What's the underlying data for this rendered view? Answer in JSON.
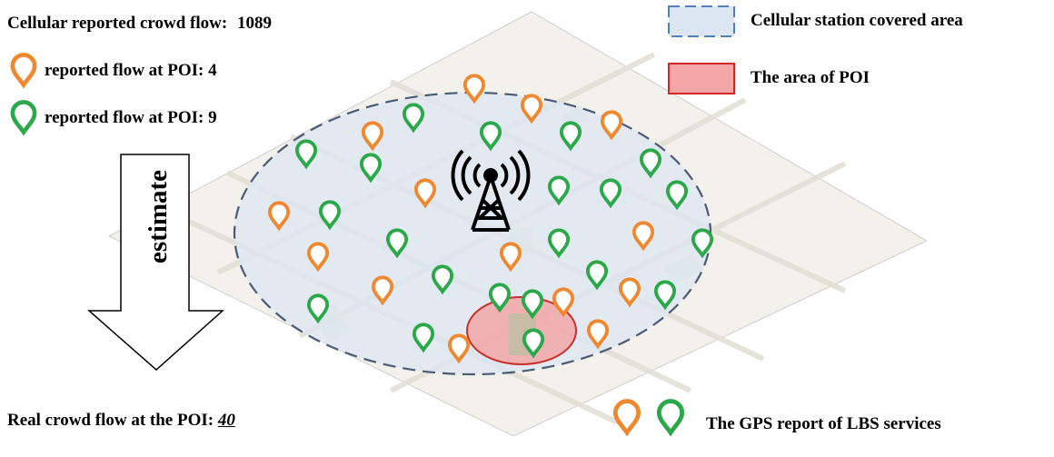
{
  "header": {
    "cellular_flow_label": "Cellular reported crowd flow:",
    "cellular_flow_value": "1089"
  },
  "reports": [
    {
      "label": "reported flow at POI:",
      "value": "4",
      "color": "#f0882f",
      "icon": "orange-pin-icon"
    },
    {
      "label": "reported flow at POI:",
      "value": "9",
      "color": "#2aa84a",
      "icon": "green-pin-icon"
    }
  ],
  "arrow": {
    "label": "estimate"
  },
  "real_flow": {
    "label": "Real crowd flow at the POI:",
    "value": "40"
  },
  "legend": {
    "covered_area": "Cellular station covered area",
    "poi_area": "The area of POI",
    "gps_report": "The GPS report of LBS services"
  },
  "colors": {
    "orange": "#f0882f",
    "green": "#2aa84a",
    "covered_fill": "#dce6f2",
    "covered_stroke": "#4f7fbf",
    "poi_fill": "#f4a5a5",
    "poi_stroke": "#d32626"
  }
}
